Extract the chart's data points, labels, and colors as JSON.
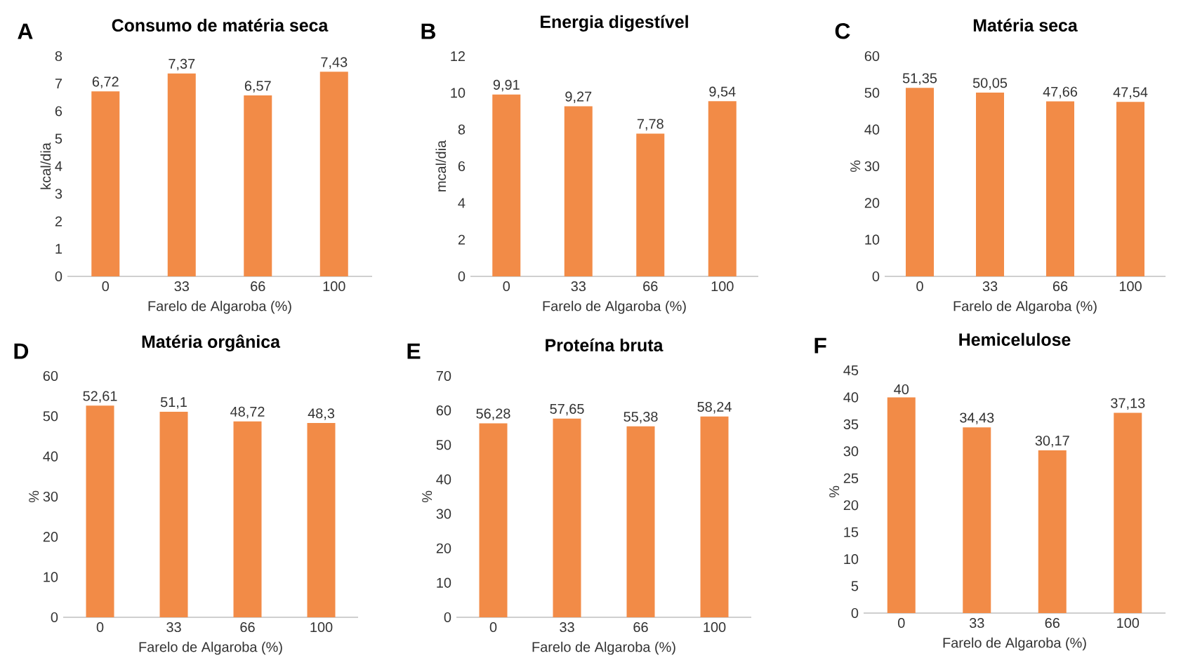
{
  "chart_data": [
    {
      "type": "bar",
      "title": "Consumo de matéria seca",
      "annotations": [
        "A"
      ],
      "xlabel": "Farelo de Algaroba (%)",
      "ylabel": "kcal/dia",
      "categories": [
        "0",
        "33",
        "66",
        "100"
      ],
      "values": [
        6.72,
        7.37,
        6.57,
        7.43
      ],
      "value_labels": [
        "6,72",
        "7,37",
        "6,57",
        "7,43"
      ],
      "color": "#f28b47",
      "ylim": [
        0,
        8
      ],
      "yticks": [
        0,
        1,
        2,
        3,
        4,
        5,
        6,
        7,
        8
      ]
    },
    {
      "type": "bar",
      "title": "Energia digestível",
      "annotations": [
        "B"
      ],
      "xlabel": "Farelo de Algaroba (%)",
      "ylabel": "mcal/dia",
      "categories": [
        "0",
        "33",
        "66",
        "100"
      ],
      "values": [
        9.91,
        9.27,
        7.78,
        9.54
      ],
      "value_labels": [
        "9,91",
        "9,27",
        "7,78",
        "9,54"
      ],
      "color": "#f28b47",
      "ylim": [
        0,
        12
      ],
      "yticks": [
        0,
        2,
        4,
        6,
        8,
        10,
        12
      ]
    },
    {
      "type": "bar",
      "title": "Matéria seca",
      "annotations": [
        "C"
      ],
      "xlabel": "Farelo de Algaroba (%)",
      "ylabel": "%",
      "categories": [
        "0",
        "33",
        "66",
        "100"
      ],
      "values": [
        51.35,
        50.05,
        47.66,
        47.54
      ],
      "value_labels": [
        "51,35",
        "50,05",
        "47,66",
        "47,54"
      ],
      "color": "#f28b47",
      "ylim": [
        0,
        60
      ],
      "yticks": [
        0,
        10,
        20,
        30,
        40,
        50,
        60
      ]
    },
    {
      "type": "bar",
      "title": "Matéria orgânica",
      "annotations": [
        "D"
      ],
      "xlabel": "Farelo de Algaroba (%)",
      "ylabel": "%",
      "categories": [
        "0",
        "33",
        "66",
        "100"
      ],
      "values": [
        52.61,
        51.1,
        48.72,
        48.3
      ],
      "value_labels": [
        "52,61",
        "51,1",
        "48,72",
        "48,3"
      ],
      "color": "#f28b47",
      "ylim": [
        0,
        60
      ],
      "yticks": [
        0,
        10,
        20,
        30,
        40,
        50,
        60
      ]
    },
    {
      "type": "bar",
      "title": "Proteína bruta",
      "annotations": [
        "E"
      ],
      "xlabel": "Farelo de Algaroba (%)",
      "ylabel": "%",
      "categories": [
        "0",
        "33",
        "66",
        "100"
      ],
      "values": [
        56.28,
        57.65,
        55.38,
        58.24
      ],
      "value_labels": [
        "56,28",
        "57,65",
        "55,38",
        "58,24"
      ],
      "color": "#f28b47",
      "ylim": [
        0,
        70
      ],
      "yticks": [
        0,
        10,
        20,
        30,
        40,
        50,
        60,
        70
      ]
    },
    {
      "type": "bar",
      "title": "Hemicelulose",
      "annotations": [
        "F"
      ],
      "xlabel": "Farelo de Algaroba (%)",
      "ylabel": "%",
      "categories": [
        "0",
        "33",
        "66",
        "100"
      ],
      "values": [
        40,
        34.43,
        30.17,
        37.13
      ],
      "value_labels": [
        "40",
        "34,43",
        "30,17",
        "37,13"
      ],
      "color": "#f28b47",
      "ylim": [
        0,
        45
      ],
      "yticks": [
        0,
        5,
        10,
        15,
        20,
        25,
        30,
        35,
        40,
        45
      ]
    }
  ]
}
